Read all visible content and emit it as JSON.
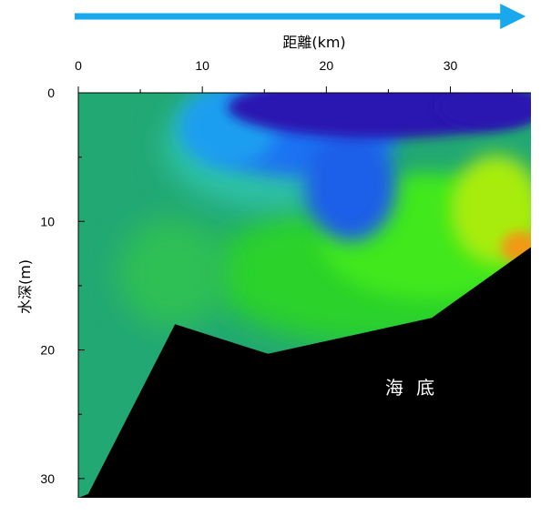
{
  "chart_data": {
    "type": "heatmap",
    "title": "",
    "xlabel": "距離(km)",
    "ylabel": "水深(m)",
    "xlim": [
      0,
      36.5
    ],
    "ylim": [
      0,
      31.5
    ],
    "x_axis_position": "top",
    "y_axis_inverted": true,
    "x_ticks": [
      0,
      10,
      20,
      30
    ],
    "y_ticks": [
      0,
      10,
      20,
      30
    ],
    "direction_arrow": "left-to-right",
    "colors": {
      "arrow": "#1aa8ec",
      "seabed": "#000000",
      "field_base": "#22a873"
    },
    "seabed_profile": {
      "x": [
        0,
        0.8,
        7.8,
        15.3,
        28.5,
        36.5
      ],
      "depth": [
        31.5,
        31.2,
        18.0,
        20.3,
        17.5,
        12.0
      ]
    },
    "seabed_label": "海 底"
  }
}
